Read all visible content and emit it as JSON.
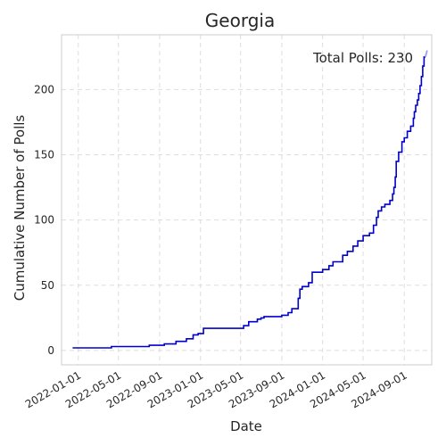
{
  "chart_data": {
    "type": "line",
    "title": "Georgia",
    "xlabel": "Date",
    "ylabel": "Cumulative Number of Polls",
    "annotation": "Total Polls: 230",
    "x_tick_labels": [
      "2022-01-01",
      "2022-05-01",
      "2022-09-01",
      "2023-01-01",
      "2023-05-01",
      "2023-09-01",
      "2024-01-01",
      "2024-05-01",
      "2024-09-01"
    ],
    "y_tick_labels": [
      "0",
      "50",
      "100",
      "150",
      "200"
    ],
    "y_ticks": [
      0,
      50,
      100,
      150,
      200
    ],
    "xlim": [
      "2021-11-12",
      "2024-11-22"
    ],
    "ylim": [
      -11,
      242
    ],
    "grid": true,
    "line_color": "#0000cc",
    "last_segment_color": "#9999ff",
    "series": [
      {
        "points": [
          [
            "2021-12-15",
            2
          ],
          [
            "2022-04-10",
            3
          ],
          [
            "2022-08-01",
            4
          ],
          [
            "2022-09-15",
            5
          ],
          [
            "2022-10-20",
            7
          ],
          [
            "2022-11-20",
            9
          ],
          [
            "2022-12-10",
            12
          ],
          [
            "2022-12-25",
            13
          ],
          [
            "2023-01-10",
            17
          ],
          [
            "2023-05-10",
            19
          ],
          [
            "2023-05-25",
            22
          ],
          [
            "2023-06-20",
            24
          ],
          [
            "2023-07-01",
            25
          ],
          [
            "2023-07-10",
            26
          ],
          [
            "2023-09-01",
            27
          ],
          [
            "2023-09-20",
            29
          ],
          [
            "2023-10-01",
            32
          ],
          [
            "2023-10-20",
            40
          ],
          [
            "2023-10-25",
            47
          ],
          [
            "2023-11-01",
            49
          ],
          [
            "2023-11-20",
            52
          ],
          [
            "2023-12-01",
            60
          ],
          [
            "2024-01-01",
            62
          ],
          [
            "2024-01-20",
            65
          ],
          [
            "2024-02-01",
            68
          ],
          [
            "2024-03-01",
            73
          ],
          [
            "2024-03-15",
            76
          ],
          [
            "2024-04-01",
            80
          ],
          [
            "2024-04-15",
            84
          ],
          [
            "2024-05-01",
            88
          ],
          [
            "2024-05-20",
            90
          ],
          [
            "2024-06-01",
            96
          ],
          [
            "2024-06-10",
            102
          ],
          [
            "2024-06-15",
            107
          ],
          [
            "2024-06-25",
            110
          ],
          [
            "2024-07-05",
            112
          ],
          [
            "2024-07-20",
            115
          ],
          [
            "2024-07-28",
            120
          ],
          [
            "2024-08-01",
            125
          ],
          [
            "2024-08-05",
            133
          ],
          [
            "2024-08-08",
            145
          ],
          [
            "2024-08-15",
            152
          ],
          [
            "2024-08-25",
            160
          ],
          [
            "2024-09-01",
            163
          ],
          [
            "2024-09-10",
            168
          ],
          [
            "2024-09-20",
            172
          ],
          [
            "2024-09-28",
            178
          ],
          [
            "2024-10-01",
            183
          ],
          [
            "2024-10-05",
            188
          ],
          [
            "2024-10-10",
            192
          ],
          [
            "2024-10-14",
            197
          ],
          [
            "2024-10-18",
            203
          ],
          [
            "2024-10-22",
            210
          ],
          [
            "2024-10-26",
            218
          ],
          [
            "2024-10-30",
            225
          ],
          [
            "2024-11-03",
            230
          ]
        ]
      }
    ]
  }
}
